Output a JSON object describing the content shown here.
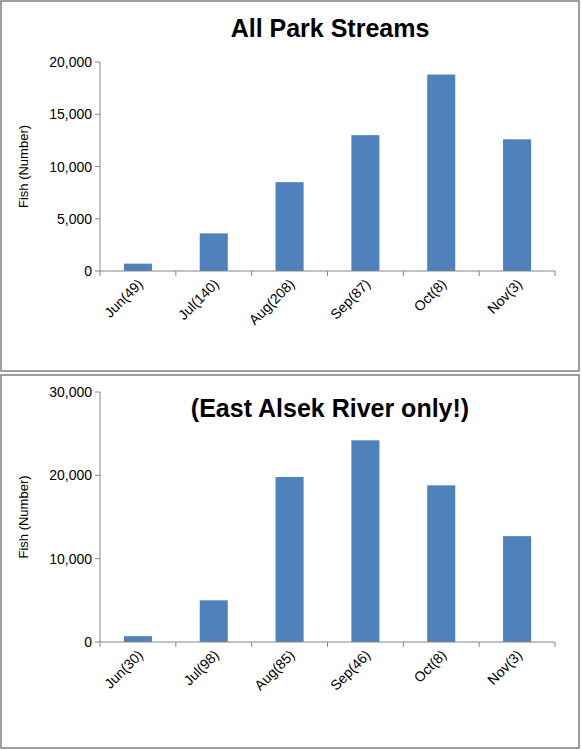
{
  "chart_data": [
    {
      "type": "bar",
      "title": "All Park Streams",
      "y_label": "Fish (Number)",
      "categories": [
        "Jun(49)",
        "Jul(140)",
        "Aug(208)",
        "Sep(87)",
        "Oct(8)",
        "Nov(3)"
      ],
      "values": [
        700,
        3600,
        8500,
        13000,
        18800,
        12600
      ],
      "color": "#4f81bd",
      "ylim": [
        0,
        20000
      ],
      "yticks": [
        0,
        {
          "value": 5000,
          "label": "5,000"
        },
        {
          "value": 10000,
          "label": "10,000"
        },
        {
          "value": 15000,
          "label": "15,000"
        },
        {
          "value": 20000,
          "label": "20,000"
        }
      ],
      "grid": false
    },
    {
      "type": "bar",
      "title": "(East Alsek River only!)",
      "y_label": "Fish (Number)",
      "categories": [
        "Jun(30)",
        "Jul(98)",
        "Aug(85)",
        "Sep(46)",
        "Oct(8)",
        "Nov(3)"
      ],
      "values": [
        700,
        5000,
        19800,
        24200,
        18800,
        12700
      ],
      "color": "#4f81bd",
      "ylim": [
        0,
        30000
      ],
      "yticks": [
        0,
        {
          "value": 10000,
          "label": "10,000"
        },
        {
          "value": 20000,
          "label": "20,000"
        },
        {
          "value": 30000,
          "label": "30,000"
        }
      ],
      "grid": false
    }
  ]
}
